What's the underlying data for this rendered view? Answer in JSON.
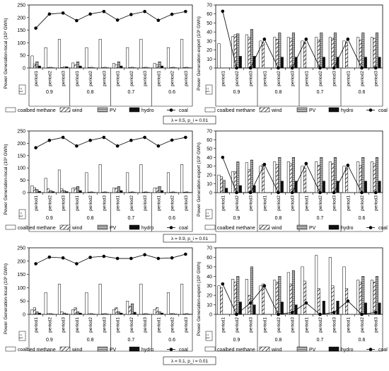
{
  "legend_labels": {
    "coalbed methane": "coalbed methane",
    "wind": "wind",
    "pv": "PV",
    "hydro": "hydro",
    "coal": "coal"
  },
  "period_labels": [
    "period1",
    "period2",
    "period3"
  ],
  "group_labels": [
    "0.9",
    "0.8",
    "0.7",
    "0.6"
  ],
  "xi_label": "ξ =",
  "captions": [
    "λ = 0.5, p_i = 0.01",
    "λ = 0.9, p_i = 0.01",
    "λ = 0.1, p_i = 0.01"
  ],
  "colors": {
    "coalbed_methane": "#ffffff",
    "wind": "#ffffff",
    "pv": "#a0a0a0",
    "hydro": "#111111",
    "coal": "#000000"
  },
  "chart_data": [
    {
      "type": "bar",
      "title": "",
      "ylabel": "Power Generation-local (10³ GWh)",
      "ylim": [
        0,
        250
      ],
      "yticks": [
        0,
        50,
        100,
        150,
        200,
        250
      ],
      "categories": [
        "0.9-period1",
        "0.9-period2",
        "0.9-period3",
        "0.8-period1",
        "0.8-period2",
        "0.8-period3",
        "0.7-period1",
        "0.7-period2",
        "0.7-period3",
        "0.6-period1",
        "0.6-period2",
        "0.6-period3"
      ],
      "series": [
        {
          "name": "coalbed methane",
          "values": [
            48,
            81,
            114,
            20,
            81,
            114,
            18,
            81,
            114,
            18,
            81,
            114
          ]
        },
        {
          "name": "wind",
          "values": [
            15,
            2,
            2,
            12,
            2,
            2,
            12,
            2,
            2,
            12,
            2,
            2
          ]
        },
        {
          "name": "PV",
          "values": [
            25,
            3,
            4,
            25,
            3,
            3,
            25,
            3,
            3,
            25,
            3,
            3
          ]
        },
        {
          "name": "hydro",
          "values": [
            8,
            1,
            5,
            8,
            1,
            1,
            8,
            1,
            1,
            8,
            1,
            1
          ]
        },
        {
          "name": "coal",
          "type": "line",
          "values": [
            158,
            214,
            218,
            188,
            214,
            224,
            190,
            212,
            224,
            189,
            213,
            224
          ]
        }
      ]
    },
    {
      "type": "bar",
      "title": "",
      "ylabel": "Power Generation-export (10³ GWh)",
      "ylim": [
        0,
        70
      ],
      "yticks": [
        0,
        10,
        20,
        30,
        40,
        50,
        60,
        70
      ],
      "categories": [
        "0.9-period1",
        "0.9-period2",
        "0.9-period3",
        "0.8-period1",
        "0.8-period2",
        "0.8-period3",
        "0.7-period1",
        "0.7-period2",
        "0.7-period3",
        "0.6-period1",
        "0.6-period2",
        "0.6-period3"
      ],
      "series": [
        {
          "name": "coalbed methane",
          "values": [
            27,
            35,
            37,
            30,
            34,
            34,
            30,
            34,
            34,
            30,
            34,
            34
          ]
        },
        {
          "name": "wind",
          "values": [
            0,
            37,
            34,
            28,
            32,
            33,
            28,
            31,
            33,
            28,
            31,
            33
          ]
        },
        {
          "name": "PV",
          "values": [
            0,
            38,
            43,
            0,
            39,
            39,
            0,
            39,
            39,
            0,
            39,
            39
          ]
        },
        {
          "name": "hydro",
          "values": [
            0,
            13,
            13,
            0,
            12,
            12,
            0,
            12,
            12,
            0,
            12,
            12
          ]
        },
        {
          "name": "coal",
          "type": "line",
          "values": [
            63,
            0,
            0,
            32,
            0,
            0,
            32,
            0,
            0,
            32,
            0,
            0
          ]
        }
      ]
    },
    {
      "type": "bar",
      "title": "",
      "ylabel": "Power Generation-local (10³ GWh)",
      "ylim": [
        0,
        250
      ],
      "yticks": [
        0,
        50,
        100,
        150,
        200,
        250
      ],
      "categories": [
        "0.9-period1",
        "0.9-period2",
        "0.9-period3",
        "0.8-period1",
        "0.8-period2",
        "0.8-period3",
        "0.7-period1",
        "0.7-period2",
        "0.7-period3",
        "0.6-period1",
        "0.6-period2",
        "0.6-period3"
      ],
      "series": [
        {
          "name": "coalbed methane",
          "values": [
            28,
            58,
            92,
            18,
            81,
            114,
            18,
            81,
            114,
            18,
            81,
            114
          ]
        },
        {
          "name": "wind",
          "values": [
            20,
            15,
            15,
            20,
            2,
            2,
            18,
            2,
            2,
            18,
            2,
            2
          ]
        },
        {
          "name": "PV",
          "values": [
            12,
            8,
            8,
            25,
            3,
            3,
            25,
            3,
            3,
            25,
            3,
            3
          ]
        },
        {
          "name": "hydro",
          "values": [
            5,
            4,
            4,
            8,
            1,
            1,
            8,
            1,
            1,
            8,
            1,
            1
          ]
        },
        {
          "name": "coal",
          "type": "line",
          "values": [
            182,
            212,
            224,
            189,
            212,
            224,
            189,
            212,
            224,
            189,
            213,
            224
          ]
        }
      ]
    },
    {
      "type": "bar",
      "title": "",
      "ylabel": "Power Generation-export (10³ GWh)",
      "ylim": [
        0,
        70
      ],
      "yticks": [
        0,
        10,
        20,
        30,
        40,
        50,
        60,
        70
      ],
      "categories": [
        "0.9-period1",
        "0.9-period2",
        "0.9-period3",
        "0.8-period1",
        "0.8-period2",
        "0.8-period3",
        "0.7-period1",
        "0.7-period2",
        "0.7-period3",
        "0.6-period1",
        "0.6-period2",
        "0.6-period3"
      ],
      "series": [
        {
          "name": "coalbed methane",
          "values": [
            20,
            24,
            34,
            30,
            35,
            35,
            30,
            35,
            35,
            30,
            35,
            35
          ]
        },
        {
          "name": "wind",
          "values": [
            18,
            24,
            26,
            32,
            32,
            33,
            28,
            31,
            33,
            28,
            31,
            33
          ]
        },
        {
          "name": "PV",
          "values": [
            14,
            35,
            37,
            0,
            40,
            40,
            0,
            40,
            40,
            0,
            40,
            40
          ]
        },
        {
          "name": "hydro",
          "values": [
            5,
            8,
            8,
            0,
            13,
            13,
            0,
            13,
            13,
            0,
            13,
            13
          ]
        },
        {
          "name": "coal",
          "type": "line",
          "values": [
            40,
            0,
            0,
            32,
            0,
            0,
            33,
            0,
            0,
            31,
            0,
            0
          ]
        }
      ]
    },
    {
      "type": "bar",
      "title": "",
      "ylabel": "Power Generation-local (10³ GWh)",
      "ylim": [
        0,
        250
      ],
      "yticks": [
        0,
        50,
        100,
        150,
        200,
        250
      ],
      "categories": [
        "0.9-period1",
        "0.9-period2",
        "0.9-period3",
        "0.8-period1",
        "0.8-period2",
        "0.8-period3",
        "0.7-period1",
        "0.7-period2",
        "0.7-period3",
        "0.6-period1",
        "0.6-period2",
        "0.6-period3"
      ],
      "series": [
        {
          "name": "coalbed methane",
          "values": [
            18,
            82,
            114,
            18,
            82,
            114,
            18,
            50,
            114,
            18,
            82,
            114
          ]
        },
        {
          "name": "wind",
          "values": [
            25,
            3,
            10,
            25,
            3,
            2,
            25,
            30,
            2,
            25,
            3,
            2
          ]
        },
        {
          "name": "PV",
          "values": [
            10,
            3,
            5,
            10,
            3,
            3,
            10,
            40,
            3,
            10,
            3,
            3
          ]
        },
        {
          "name": "hydro",
          "values": [
            5,
            1,
            2,
            5,
            1,
            1,
            5,
            8,
            1,
            5,
            1,
            1
          ]
        },
        {
          "name": "coal",
          "type": "line",
          "values": [
            190,
            215,
            212,
            190,
            214,
            218,
            210,
            210,
            224,
            210,
            212,
            226
          ]
        }
      ]
    },
    {
      "type": "bar",
      "title": "",
      "ylabel": "Power Generation-export (10³ GWh)",
      "ylim": [
        0,
        70
      ],
      "yticks": [
        0,
        10,
        20,
        30,
        40,
        50,
        60,
        70
      ],
      "categories": [
        "0.9-period1",
        "0.9-period2",
        "0.9-period3",
        "0.8-period1",
        "0.8-period2",
        "0.8-period3",
        "0.7-period1",
        "0.7-period2",
        "0.7-period3",
        "0.6-period1",
        "0.6-period2",
        "0.6-period3"
      ],
      "series": [
        {
          "name": "coalbed methane",
          "values": [
            30,
            37,
            37,
            30,
            36,
            44,
            50,
            62,
            60,
            50,
            36,
            36
          ]
        },
        {
          "name": "wind",
          "values": [
            28,
            34,
            20,
            32,
            34,
            32,
            35,
            27,
            30,
            27,
            34,
            34
          ]
        },
        {
          "name": "PV",
          "values": [
            0,
            40,
            50,
            0,
            40,
            46,
            0,
            0,
            0,
            0,
            40,
            40
          ]
        },
        {
          "name": "hydro",
          "values": [
            0,
            13,
            10,
            0,
            13,
            10,
            0,
            14,
            14,
            0,
            12,
            12
          ]
        },
        {
          "name": "coal",
          "type": "line",
          "values": [
            32,
            0,
            12,
            30,
            0,
            2,
            12,
            0,
            2,
            14,
            0,
            2
          ]
        }
      ]
    }
  ]
}
